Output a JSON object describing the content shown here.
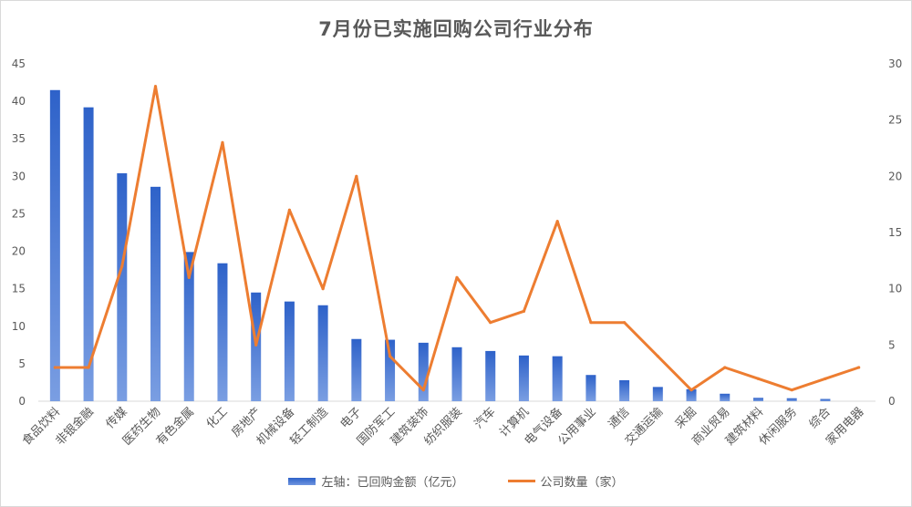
{
  "chart_data": {
    "type": "bar",
    "title": "7月份已实施回购公司行业分布",
    "categories": [
      "食品饮料",
      "非银金融",
      "传媒",
      "医药生物",
      "有色金属",
      "化工",
      "房地产",
      "机械设备",
      "轻工制造",
      "电子",
      "国防军工",
      "建筑装饰",
      "纺织服装",
      "汽车",
      "计算机",
      "电气设备",
      "公用事业",
      "通信",
      "交通运输",
      "采掘",
      "商业贸易",
      "建筑材料",
      "休闲服务",
      "综合",
      "家用电器"
    ],
    "series": [
      {
        "name": "左轴：已回购金额（亿元）",
        "type": "bar",
        "axis": "left",
        "color": "#4472c4",
        "values": [
          41.5,
          39.2,
          30.4,
          28.6,
          19.9,
          18.4,
          14.5,
          13.3,
          12.8,
          8.3,
          8.2,
          7.8,
          7.2,
          6.7,
          6.1,
          6.0,
          3.5,
          2.8,
          1.9,
          1.6,
          1.0,
          0.45,
          0.4,
          0.3,
          0
        ]
      },
      {
        "name": "公司数量（家）",
        "type": "line",
        "axis": "right",
        "color": "#ed7d31",
        "values": [
          3,
          3,
          12,
          28,
          11,
          23,
          5,
          17,
          10,
          20,
          4,
          1,
          11,
          7,
          8,
          16,
          7,
          7,
          4,
          1,
          3,
          2,
          1,
          2,
          3
        ]
      }
    ],
    "ylim_left": [
      0,
      45
    ],
    "yticks_left": [
      0,
      5,
      10,
      15,
      20,
      25,
      30,
      35,
      40,
      45
    ],
    "ylim_right": [
      0,
      30
    ],
    "yticks_right": [
      0,
      5,
      10,
      15,
      20,
      25,
      30
    ],
    "grid": false,
    "legend_position": "bottom"
  }
}
